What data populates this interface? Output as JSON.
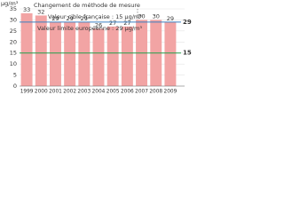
{
  "chart_data": {
    "type": "bar",
    "unit": "µg/m³",
    "categories": [
      "1999",
      "2000",
      "2001",
      "2002",
      "2003",
      "2004",
      "2005",
      "2006",
      "2007",
      "2008",
      "2009"
    ],
    "values": [
      33,
      32,
      29,
      29,
      29,
      26,
      27,
      27,
      30,
      30,
      29
    ],
    "color": "#f2a4a4",
    "ylim": [
      0,
      35
    ],
    "yticks": [
      0,
      5,
      10,
      15,
      20,
      25,
      30,
      35
    ],
    "grid": true,
    "annotation": "Changement de méthode de mesure",
    "references": [
      {
        "name": "Valeur cible française : 15 µg/m³",
        "value": 15,
        "color": "#22a04a"
      },
      {
        "name": "Valeur limite européenne : 29 µg/m³",
        "value": 29,
        "color": "#3a7fc1"
      }
    ]
  }
}
